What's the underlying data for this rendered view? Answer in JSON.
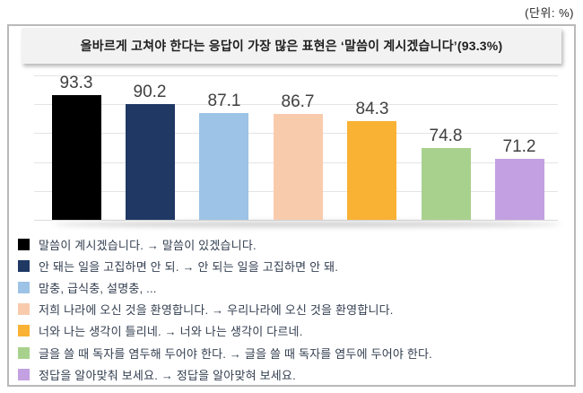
{
  "page": {
    "unit_label": "(단위: %)"
  },
  "header": {
    "title": "올바르게 고쳐야 한다는 응답이 가장 많은 표현은 ‘말씀이 계시겠습니다’(93.3%)"
  },
  "chart_data": {
    "type": "bar",
    "title": "올바르게 고쳐야 한다는 응답이 가장 많은 표현은 ‘말씀이 계시겠습니다’(93.3%)",
    "unit": "%",
    "categories": [
      "말씀이 계시겠습니다. → 말씀이 있겠습니다.",
      "안 돼는 일을 고집하면 안 되. → 안 되는 일을 고집하면 안 돼.",
      "맘충, 급식충, 설명충, ...",
      "저희 나라에 오신 것을 환영합니다. → 우리나라에 오신 것을 환영합니다.",
      "너와 나는 생각이 틀리네. → 너와 나는 생각이 다르네.",
      "글을 쓸 때 독자를 염두해 두어야 한다. → 글을 쓸 때 독자를 염두에 두어야 한다.",
      "정답을 알아맞춰 보세요. → 정답을 알아맞혀 보세요."
    ],
    "values": [
      93.3,
      90.2,
      87.1,
      86.7,
      84.3,
      74.8,
      71.2
    ],
    "value_labels": [
      "93.3",
      "90.2",
      "87.1",
      "86.7",
      "84.3",
      "74.8",
      "71.2"
    ],
    "colors": [
      "#000000",
      "#1f3864",
      "#9dc3e6",
      "#f8cbad",
      "#f9b234",
      "#a9d18e",
      "#c3a0e1"
    ],
    "xlabel": "",
    "ylabel": "",
    "ylim": [
      50,
      100
    ],
    "grid_step": 10,
    "grid": true,
    "legend_position": "bottom",
    "data_labels": true
  },
  "colors": {
    "frame_border": "#b9b9b9",
    "title_background": "#f2f2f2",
    "title_text": "#1f1f1f",
    "gridline": "#e4e4e4",
    "baseline": "#dcdcdc",
    "value_label_text": "#404040",
    "legend_text": "#333f50",
    "background": "#ffffff"
  }
}
